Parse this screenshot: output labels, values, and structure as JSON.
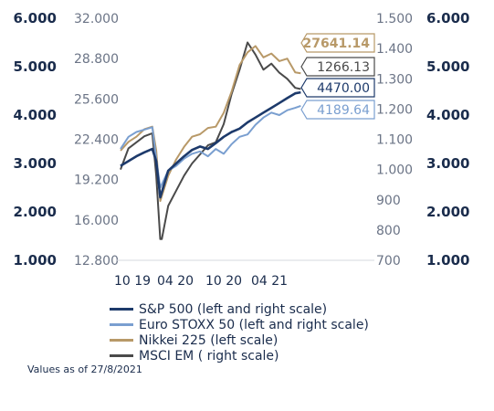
{
  "chart_data": {
    "type": "line",
    "axes": {
      "outer_left_ticks": [
        "6.000",
        "5.000",
        "4.000",
        "3.000",
        "2.000",
        "1.000"
      ],
      "inner_left_ticks": [
        "32.000",
        "28.800",
        "25.600",
        "22.400",
        "19.200",
        "16.000",
        "12.800"
      ],
      "inner_right_ticks": [
        "1.500",
        "1.400",
        "1.300",
        "1.200",
        "1.100",
        "1.000",
        "900",
        "800",
        "700"
      ],
      "outer_right_ticks": [
        "6.000",
        "5.000",
        "4.000",
        "3.000",
        "2.000",
        "1.000"
      ],
      "x_ticks": [
        "10 19",
        "04 20",
        "10 20",
        "04 21"
      ]
    },
    "x_range": [
      0,
      23
    ],
    "sp500_range": [
      1000,
      6000
    ],
    "nikkei_range": [
      12800,
      32000
    ],
    "msci_range": [
      700,
      1500
    ],
    "series": [
      {
        "name": "S&P 500 (left and right scale)",
        "color": "#1d3a6b",
        "axis": "sp500",
        "end_label": "4470.00",
        "x": [
          0,
          1,
          2,
          3,
          4,
          4.5,
          5,
          6,
          7,
          8,
          9,
          10,
          11,
          12,
          13,
          14,
          15,
          16,
          17,
          18,
          19,
          20,
          21,
          22,
          22.7
        ],
        "y": [
          2950,
          3050,
          3150,
          3230,
          3300,
          3050,
          2300,
          2850,
          3000,
          3150,
          3280,
          3350,
          3300,
          3420,
          3550,
          3650,
          3720,
          3850,
          3950,
          4050,
          4150,
          4250,
          4350,
          4450,
          4470
        ]
      },
      {
        "name": "Euro STOXX 50 (left and right scale)",
        "color": "#7a9fd0",
        "axis": "sp500",
        "end_label": "4189.64",
        "x": [
          0,
          1,
          2,
          3,
          4,
          4.5,
          5,
          6,
          7,
          8,
          9,
          10,
          11,
          12,
          13,
          14,
          15,
          16,
          17,
          18,
          19,
          20,
          21,
          22,
          22.7
        ],
        "y": [
          3300,
          3550,
          3650,
          3700,
          3750,
          3100,
          2500,
          2850,
          2950,
          3100,
          3200,
          3250,
          3150,
          3300,
          3200,
          3400,
          3550,
          3600,
          3800,
          3950,
          4050,
          4000,
          4100,
          4150,
          4189.64
        ]
      },
      {
        "name": "Nikkei 225 (left scale)",
        "color": "#b89968",
        "axis": "nikkei",
        "end_label": "27641.14",
        "x": [
          0,
          1,
          2,
          3,
          4,
          4.5,
          5,
          6,
          7,
          8,
          9,
          10,
          11,
          12,
          13,
          14,
          15,
          16,
          17,
          18,
          19,
          20,
          21,
          22,
          22.7
        ],
        "y": [
          21500,
          22200,
          22600,
          23200,
          23400,
          21500,
          17500,
          19500,
          20800,
          21800,
          22600,
          22800,
          23300,
          23400,
          24500,
          26200,
          28300,
          29300,
          29800,
          28900,
          29200,
          28600,
          28800,
          27700,
          27641.14
        ]
      },
      {
        "name": "MSCI EM ( right scale)",
        "color": "#4a4a4a",
        "axis": "msci",
        "end_label": "1266.13",
        "x": [
          0,
          1,
          2,
          3,
          4,
          4.5,
          5,
          5.2,
          6,
          7,
          8,
          9,
          10,
          11,
          12,
          13,
          14,
          15,
          16,
          17,
          18,
          19,
          20,
          21,
          22,
          22.7
        ],
        "y": [
          1000,
          1070,
          1090,
          1110,
          1120,
          980,
          770,
          770,
          880,
          930,
          980,
          1020,
          1050,
          1080,
          1090,
          1150,
          1250,
          1330,
          1420,
          1380,
          1330,
          1350,
          1320,
          1300,
          1270,
          1266.13
        ]
      }
    ]
  },
  "legend": [
    {
      "label": "S&P 500 (left and right scale)",
      "color": "#1d3a6b"
    },
    {
      "label": "Euro STOXX 50 (left and right scale)",
      "color": "#7a9fd0"
    },
    {
      "label": "Nikkei 225 (left scale)",
      "color": "#b89968"
    },
    {
      "label": "MSCI EM ( right scale)",
      "color": "#4a4a4a"
    }
  ],
  "footnote": "Values as of 27/8/2021"
}
